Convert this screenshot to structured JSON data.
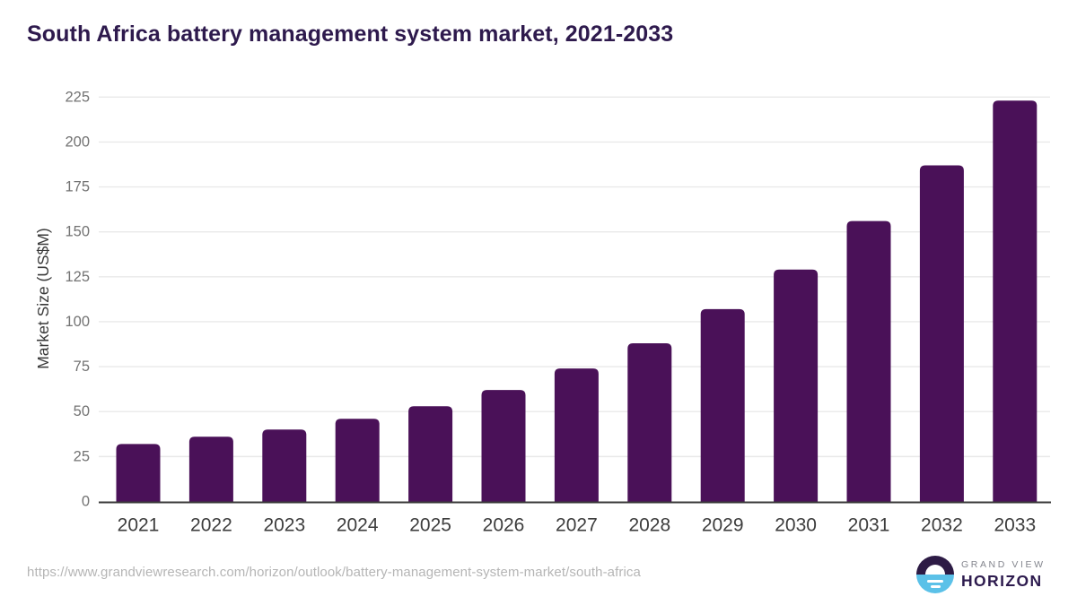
{
  "page": {
    "title": "South Africa battery management system market, 2021-2033"
  },
  "chart_data": {
    "type": "bar",
    "title": "South Africa battery management system market, 2021-2033",
    "categories": [
      "2021",
      "2022",
      "2023",
      "2024",
      "2025",
      "2026",
      "2027",
      "2028",
      "2029",
      "2030",
      "2031",
      "2032",
      "2033"
    ],
    "values": [
      32,
      36,
      40,
      46,
      53,
      62,
      74,
      88,
      107,
      129,
      156,
      187,
      223
    ],
    "xlabel": "",
    "ylabel": "Market Size (US$M)",
    "ylim": [
      0,
      225
    ],
    "y_ticks": [
      0,
      25,
      50,
      75,
      100,
      125,
      150,
      175,
      200,
      225
    ],
    "grid": true,
    "legend": false
  },
  "footer": {
    "source_url": "https://www.grandviewresearch.com/horizon/outlook/battery-management-system-market/south-africa",
    "brand": {
      "top": "GRAND VIEW",
      "bottom": "HORIZON"
    }
  },
  "colors": {
    "bar": "#4a1158",
    "title": "#2e1a4d",
    "x_tick_label": "#3d3d3d",
    "y_tick_label": "#737373",
    "y_axis_title": "#3a3a3a",
    "gridline": "#e9e9e9",
    "baseline": "#3a3a3a",
    "url_text": "#b5b5b5",
    "logo_purple": "#2d1b45",
    "logo_blue": "#5bc1e8",
    "logo_gray": "#84868e",
    "background": "#ffffff"
  }
}
